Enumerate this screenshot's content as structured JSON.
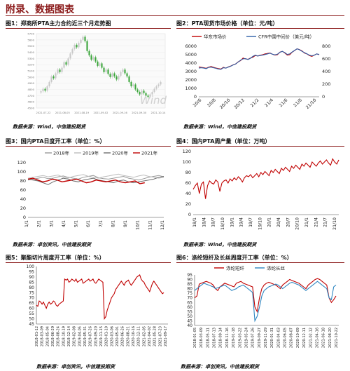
{
  "page": {
    "title": "附录、数据图表"
  },
  "panels": [
    {
      "title": "图1：郑商所PTA主力合约近三个月走势图",
      "source": "数据来源：Wind，中信建投期货",
      "chart_data": {
        "type": "candlestick",
        "y_axis_labels": [
          "5700",
          "5600",
          "5500",
          "5400",
          "5300",
          "5200",
          "5100",
          "5000",
          "4900",
          "4800",
          "4700",
          "4600",
          "4500"
        ],
        "x_labels": [
          "2021-07-22",
          "2021-08-05",
          "2021-08-19",
          "2021-09-02",
          "2021-09-16",
          "2021-09-30",
          "2021-10-14"
        ],
        "overlay_label": "Wind",
        "closes": [
          4770,
          4810,
          4780,
          4850,
          4920,
          5010,
          4980,
          5060,
          5120,
          5080,
          5150,
          5240,
          5200,
          5300,
          5380,
          5450,
          5520,
          5480,
          5550,
          5600,
          5650,
          5580,
          5420,
          5350,
          5280,
          5320,
          5250,
          5180,
          5220,
          5150,
          5080,
          5120,
          5050,
          5000,
          5060,
          5010,
          4960,
          5020,
          5080,
          5120,
          5060,
          5010,
          4920,
          4850,
          4880,
          4800,
          4760,
          4720,
          4780,
          4740,
          4700,
          4680,
          4720,
          4760,
          4810,
          4850,
          4880,
          4920
        ]
      }
    },
    {
      "title": "图2：PTA现货市场价格（单位：元/吨）",
      "source": "数据来源：Wind，中信建投期货",
      "chart_data": {
        "type": "line",
        "legend": [
          "华东市场价",
          "CFR中国中间价（美元/吨）"
        ],
        "colors": [
          "#C00000",
          "#2E5FA8"
        ],
        "x_ticks": [
          "20/6",
          "20/8",
          "20/10",
          "20/12",
          "21/2",
          "21/4",
          "21/6",
          "21/8",
          "21/10"
        ],
        "y_left_ticks": [
          "0",
          "1000",
          "2000",
          "3000",
          "4000",
          "5000",
          "6000"
        ],
        "y_right_ticks": [
          "0",
          "200",
          "400",
          "600",
          "800"
        ],
        "y_left_range": [
          0,
          6000
        ],
        "y_right_range": [
          0,
          800
        ],
        "series": [
          {
            "name": "华东市场价",
            "axis": "left",
            "values": [
              3550,
              3500,
              3450,
              3380,
              3520,
              3600,
              3500,
              3420,
              3350,
              3300,
              3500,
              3400,
              3550,
              3650,
              3800,
              3900,
              4150,
              4300,
              4600,
              4500,
              4450,
              4600,
              4700,
              4900,
              4850,
              4950,
              5000,
              5100,
              5150,
              5200,
              5050,
              4950,
              5000,
              5300,
              5400,
              5200,
              4950,
              5000,
              5300,
              5500,
              5700,
              5600,
              5450,
              5200,
              5100,
              4900,
              4800,
              4950,
              5100,
              5000
            ]
          },
          {
            "name": "CFR中国中间价（美元/吨）",
            "axis": "right",
            "values": [
              455,
              460,
              455,
              445,
              465,
              470,
              460,
              450,
              440,
              435,
              460,
              455,
              470,
              485,
              505,
              520,
              550,
              580,
              600,
              605,
              590,
              610,
              640,
              660,
              645,
              655,
              660,
              670,
              680,
              690,
              675,
              665,
              675,
              705,
              720,
              700,
              670,
              680,
              710,
              735,
              760,
              745,
              720,
              700,
              680,
              660,
              650,
              660,
              680,
              670
            ]
          }
        ]
      }
    },
    {
      "title": "图3：国内PTA日度开工率（单位：%）",
      "source": "数据来源：卓创资讯，中信建投期货",
      "chart_data": {
        "type": "line",
        "legend": [
          "2018年",
          "2019年",
          "2020年",
          "2021年"
        ],
        "colors": [
          "#9A9A9A",
          "#BDBDBD",
          "#6E6E6E",
          "#C00000"
        ],
        "x_ticks": [
          "1/1",
          "2/1",
          "3/1",
          "4/1",
          "5/1",
          "6/1",
          "7/1",
          "8/1",
          "9/1",
          "10/1",
          "11/1",
          "12/1"
        ],
        "y_ticks": [
          "0",
          "20",
          "40",
          "60",
          "80",
          "100",
          "120"
        ],
        "y_range": [
          0,
          120
        ],
        "series": [
          {
            "name": "2018年",
            "values": [
              82,
              84,
              86,
              88,
              85,
              86,
              89,
              91,
              88,
              86,
              84,
              88,
              90,
              92,
              87,
              85,
              84,
              86,
              88,
              90,
              86,
              84,
              82,
              85,
              88,
              90,
              92,
              89
            ]
          },
          {
            "name": "2019年",
            "values": [
              86,
              88,
              90,
              92,
              89,
              91,
              93,
              88,
              86,
              90,
              92,
              94,
              90,
              88,
              86,
              89,
              91,
              93,
              95,
              92,
              90,
              88,
              91,
              93,
              90,
              88,
              86,
              88
            ]
          },
          {
            "name": "2020年",
            "values": [
              84,
              82,
              80,
              76,
              72,
              78,
              82,
              86,
              84,
              80,
              78,
              82,
              84,
              86,
              82,
              80,
              78,
              76,
              80,
              82,
              78,
              76,
              78,
              80,
              82,
              84,
              88,
              90
            ]
          },
          {
            "name": "2021年",
            "values": [
              84,
              86,
              82,
              78,
              80,
              84,
              82,
              78,
              80,
              82,
              84,
              80,
              76,
              78,
              82,
              80,
              78,
              80,
              82,
              78,
              76,
              78,
              80,
              74,
              76
            ]
          }
        ]
      }
    },
    {
      "title": "图4：国内PTA周产量（单位：万吨）",
      "source": "数据来源：Wind，中信建投期货",
      "chart_data": {
        "type": "line",
        "colors": [
          "#C00000"
        ],
        "x_ticks": [
          "18/1",
          "18/4",
          "18/7",
          "18/10",
          "19/1",
          "19/4",
          "19/7",
          "19/10",
          "20/1",
          "20/4",
          "20/7",
          "20/10",
          "21/1",
          "21/4",
          "21/7",
          "21/10"
        ],
        "y_ticks": [
          "0",
          "20",
          "40",
          "60",
          "80",
          "100",
          "120"
        ],
        "y_range": [
          0,
          120
        ],
        "series": [
          {
            "name": "PTA周产量",
            "values": [
              48,
              55,
              60,
              40,
              58,
              62,
              30,
              55,
              64,
              60,
              58,
              66,
              62,
              44,
              60,
              64,
              66,
              60,
              68,
              64,
              70,
              66,
              72,
              68,
              62,
              70,
              74,
              72,
              76,
              70,
              74,
              78,
              72,
              80,
              76,
              82,
              78,
              74,
              84,
              80,
              86,
              82,
              78,
              88,
              84,
              90,
              86,
              82,
              92,
              88,
              94,
              90,
              86,
              96,
              92,
              98,
              94,
              90,
              100,
              96,
              92,
              98,
              102,
              96,
              100,
              104,
              98,
              94,
              106,
              100,
              96,
              104
            ]
          }
        ]
      }
    },
    {
      "title": "图5：聚酯切片周度开工率（单位：%）",
      "source": "数据来源：卓创资讯，中信建投期货",
      "chart_data": {
        "type": "line",
        "colors": [
          "#C00000"
        ],
        "y_ticks": [
          "45",
          "50",
          "55",
          "60",
          "65",
          "70",
          "75",
          "80",
          "85",
          "90",
          "95",
          "100"
        ],
        "y_range": [
          45,
          100
        ],
        "x_ticks": [
          "2018-01-12",
          "2018-03-09",
          "2018-05-04",
          "2018-06-29",
          "2018-08-24",
          "2018-10-19",
          "2018-12-14",
          "2019-02-08",
          "2019-04-05",
          "2019-05-31",
          "2019-07-26",
          "2019-09-20",
          "2019-11-15",
          "2020-01-10",
          "2020-03-06",
          "2020-05-01",
          "2020-06-26",
          "2020-08-21",
          "2020-10-16",
          "2020-12-11",
          "2021-02-05",
          "2021-04-02",
          "2021-05-28",
          "2021-07-23",
          "2021-09-17"
        ],
        "series": [
          {
            "name": "聚酯切片周度开工率",
            "values": [
              63,
              62,
              67,
              66,
              64,
              66,
              63,
              60,
              64,
              66,
              64,
              65,
              67,
              66,
              63,
              62,
              64,
              65,
              66,
              67,
              88,
              87,
              88,
              85,
              86,
              88,
              87,
              86,
              88,
              85,
              86,
              87,
              88,
              84,
              85,
              86,
              87,
              88,
              86,
              87,
              88,
              85,
              84,
              86,
              88,
              87,
              86,
              85,
              50,
              52,
              58,
              62,
              66,
              70,
              72,
              74,
              78,
              80,
              82,
              84,
              86,
              84,
              82,
              85,
              86,
              87,
              84,
              82,
              84,
              86,
              88,
              90,
              91,
              92,
              88,
              86,
              85,
              82,
              80,
              78,
              76,
              80,
              84,
              86,
              84,
              82,
              80,
              78,
              76,
              74,
              75
            ]
          }
        ]
      }
    },
    {
      "title": "图6：涤纶短纤及长丝周度开工率（单位：%）",
      "source": "数据来源：卓创资讯，中信建投期货",
      "chart_data": {
        "type": "line",
        "legend": [
          "涤纶短纤",
          "涤纶长丝"
        ],
        "colors": [
          "#C00000",
          "#2E86C1"
        ],
        "y_ticks": [
          "40",
          "45",
          "50",
          "55",
          "60",
          "65",
          "70",
          "75",
          "80",
          "85",
          "90",
          "95"
        ],
        "y_range": [
          40,
          95
        ],
        "x_ticks": [
          "2018-01-05",
          "2018-03-09",
          "2018-05-11",
          "2018-07-13",
          "2018-09-14",
          "2018-11-16",
          "2019-01-18",
          "2019-03-22",
          "2019-05-24",
          "2019-07-26",
          "2019-09-27",
          "2019-11-29",
          "2020-01-31",
          "2020-04-03",
          "2020-06-05",
          "2020-08-07",
          "2020-10-09",
          "2020-12-11",
          "2021-02-12",
          "2021-04-16",
          "2021-06-18",
          "2021-08-20",
          "2021-10-22"
        ],
        "series": [
          {
            "name": "涤纶短纤",
            "values": [
              70,
              72,
              85,
              86,
              87,
              88,
              87,
              86,
              84,
              80,
              78,
              82,
              84,
              86,
              85,
              84,
              83,
              82,
              86,
              87,
              88,
              86,
              85,
              84,
              83,
              82,
              60,
              55,
              70,
              80,
              84,
              86,
              87,
              86,
              85,
              84,
              82,
              80,
              84,
              86,
              88,
              90,
              89,
              88,
              87,
              86,
              84,
              82,
              80,
              84,
              86,
              88,
              90,
              91,
              90,
              88,
              86,
              84,
              70,
              65,
              68,
              72
            ]
          },
          {
            "name": "涤纶长丝",
            "values": [
              78,
              80,
              82,
              84,
              86,
              85,
              84,
              83,
              82,
              80,
              81,
              82,
              83,
              84,
              82,
              80,
              78,
              79,
              80,
              82,
              83,
              84,
              82,
              80,
              78,
              76,
              45,
              50,
              60,
              72,
              78,
              80,
              82,
              83,
              84,
              85,
              84,
              82,
              80,
              82,
              84,
              86,
              87,
              86,
              85,
              84,
              82,
              80,
              78,
              80,
              82,
              84,
              86,
              88,
              86,
              84,
              82,
              80,
              70,
              68,
              82,
              84
            ]
          }
        ]
      }
    }
  ]
}
